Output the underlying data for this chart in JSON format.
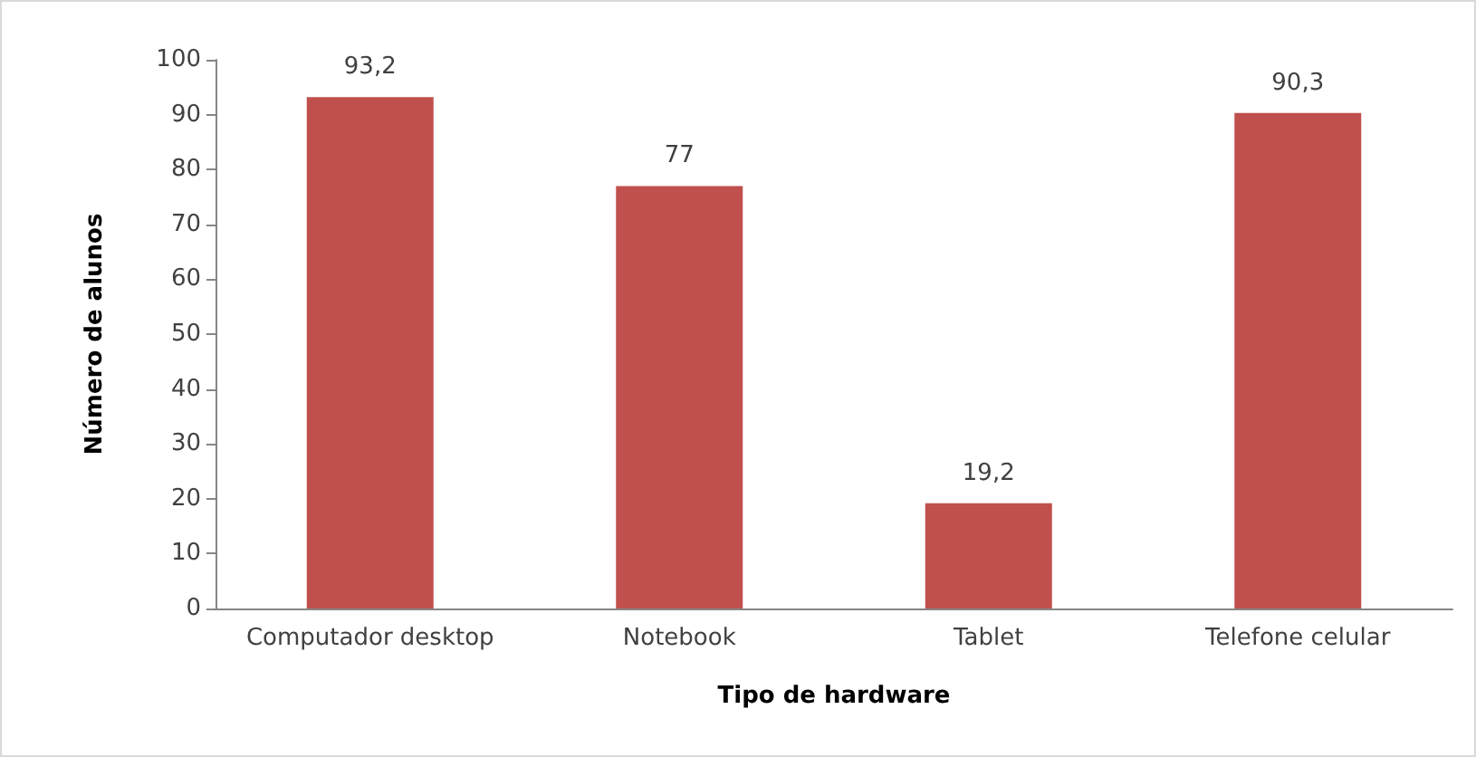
{
  "chart_data": {
    "type": "bar",
    "xlabel": "Tipo de hardware",
    "ylabel": "Número de alunos",
    "categories": [
      "Computador desktop",
      "Notebook",
      "Tablet",
      "Telefone celular"
    ],
    "values": [
      93.2,
      77,
      19.2,
      90.3
    ],
    "value_labels": [
      "93,2",
      "77",
      "19,2",
      "90,3"
    ],
    "color": "#c0504d",
    "ylim": [
      0,
      100
    ],
    "yticks": [
      0,
      10,
      20,
      30,
      40,
      50,
      60,
      70,
      80,
      90,
      100
    ],
    "grid": false
  }
}
